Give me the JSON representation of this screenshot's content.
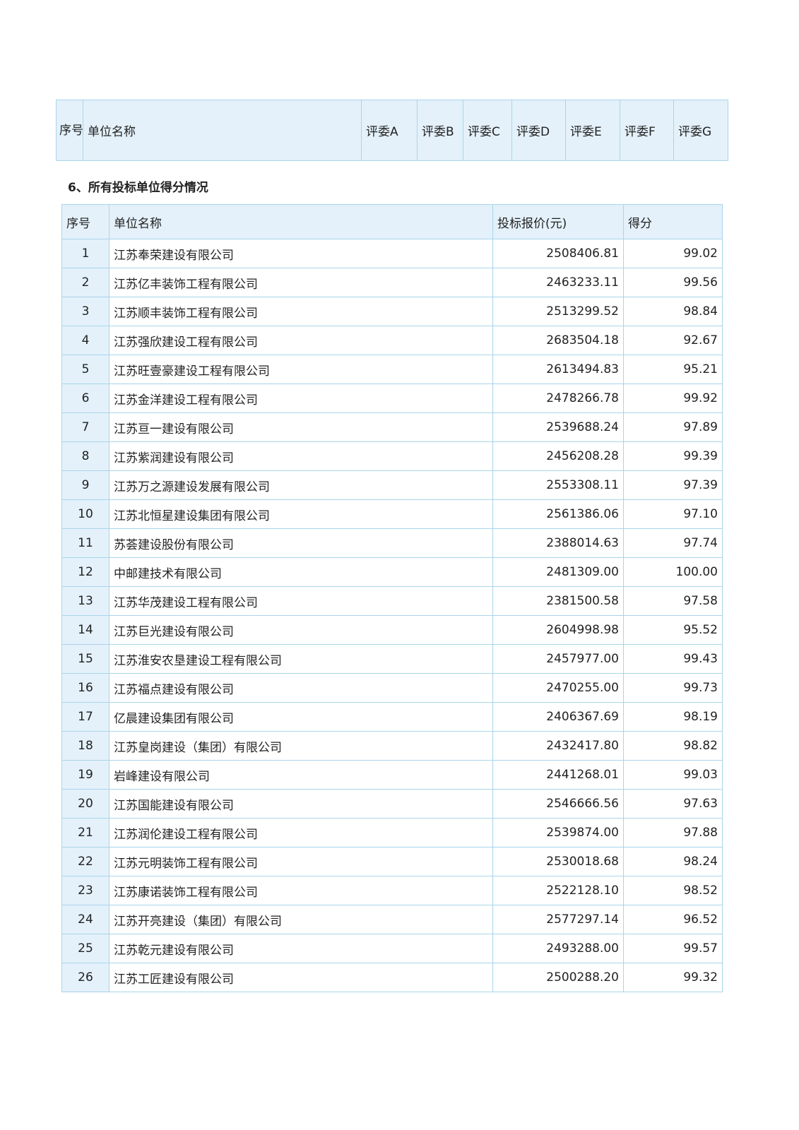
{
  "judge_table": {
    "headers": [
      "序号",
      "单位名称",
      "评委A",
      "评委B",
      "评委C",
      "评委D",
      "评委E",
      "评委F",
      "评委G"
    ]
  },
  "section_heading": "6、所有投标单位得分情况",
  "score_table": {
    "headers": [
      "序号",
      "单位名称",
      "投标报价(元)",
      "得分"
    ],
    "rows": [
      [
        "1",
        "江苏奉荣建设有限公司",
        "2508406.81",
        "99.02"
      ],
      [
        "2",
        "江苏亿丰装饰工程有限公司",
        "2463233.11",
        "99.56"
      ],
      [
        "3",
        "江苏顺丰装饰工程有限公司",
        "2513299.52",
        "98.84"
      ],
      [
        "4",
        "江苏强欣建设工程有限公司",
        "2683504.18",
        "92.67"
      ],
      [
        "5",
        "江苏旺壹豪建设工程有限公司",
        "2613494.83",
        "95.21"
      ],
      [
        "6",
        "江苏金洋建设工程有限公司",
        "2478266.78",
        "99.92"
      ],
      [
        "7",
        "江苏亘一建设有限公司",
        "2539688.24",
        "97.89"
      ],
      [
        "8",
        "江苏紫润建设有限公司",
        "2456208.28",
        "99.39"
      ],
      [
        "9",
        "江苏万之源建设发展有限公司",
        "2553308.11",
        "97.39"
      ],
      [
        "10",
        "江苏北恒星建设集团有限公司",
        "2561386.06",
        "97.10"
      ],
      [
        "11",
        "苏荟建设股份有限公司",
        "2388014.63",
        "97.74"
      ],
      [
        "12",
        "中邮建技术有限公司",
        "2481309.00",
        "100.00"
      ],
      [
        "13",
        "江苏华茂建设工程有限公司",
        "2381500.58",
        "97.58"
      ],
      [
        "14",
        "江苏巨光建设有限公司",
        "2604998.98",
        "95.52"
      ],
      [
        "15",
        "江苏淮安农垦建设工程有限公司",
        "2457977.00",
        "99.43"
      ],
      [
        "16",
        "江苏福点建设有限公司",
        "2470255.00",
        "99.73"
      ],
      [
        "17",
        "亿晨建设集团有限公司",
        "2406367.69",
        "98.19"
      ],
      [
        "18",
        "江苏皇岗建设（集团）有限公司",
        "2432417.80",
        "98.82"
      ],
      [
        "19",
        "岩峰建设有限公司",
        "2441268.01",
        "99.03"
      ],
      [
        "20",
        "江苏国能建设有限公司",
        "2546666.56",
        "97.63"
      ],
      [
        "21",
        "江苏润伦建设工程有限公司",
        "2539874.00",
        "97.88"
      ],
      [
        "22",
        "江苏元明装饰工程有限公司",
        "2530018.68",
        "98.24"
      ],
      [
        "23",
        "江苏康诺装饰工程有限公司",
        "2522128.10",
        "98.52"
      ],
      [
        "24",
        "江苏开亮建设（集团）有限公司",
        "2577297.14",
        "96.52"
      ],
      [
        "25",
        "江苏乾元建设有限公司",
        "2493288.00",
        "99.57"
      ],
      [
        "26",
        "江苏工匠建设有限公司",
        "2500288.20",
        "99.32"
      ]
    ]
  },
  "colors": {
    "header_bg": "#e4f1fa",
    "border": "#a9d5ea"
  }
}
